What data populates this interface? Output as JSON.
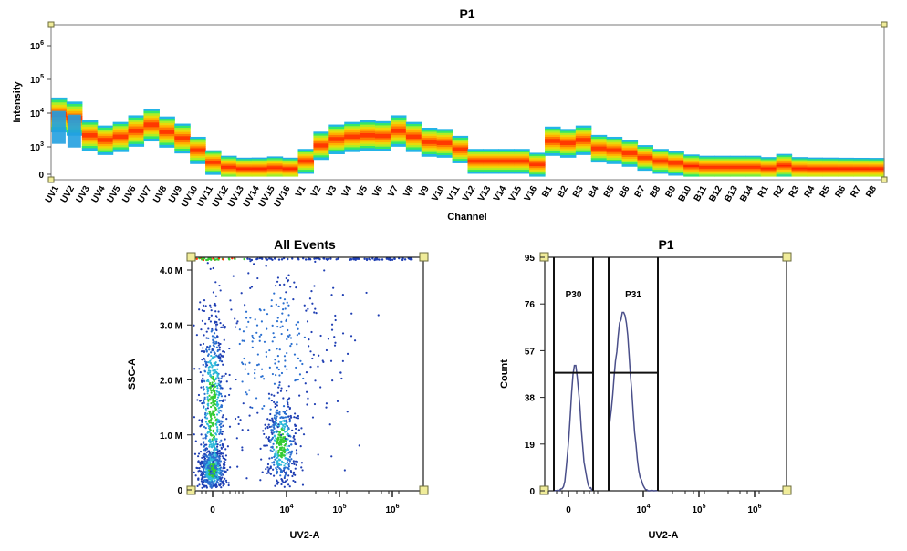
{
  "spectrum": {
    "title": "P1",
    "xlabel": "Channel",
    "ylabel": "Intensity",
    "y_ticks": [
      {
        "base": "0",
        "exp": ""
      },
      {
        "base": "10",
        "exp": "3"
      },
      {
        "base": "10",
        "exp": "4"
      },
      {
        "base": "10",
        "exp": "5"
      },
      {
        "base": "10",
        "exp": "6"
      }
    ]
  },
  "scatter_plot": {
    "title": "All Events",
    "xlabel": "UV2-A",
    "ylabel": "SSC-A",
    "x_ticks": [
      {
        "base": "0",
        "exp": ""
      },
      {
        "base": "10",
        "exp": "4"
      },
      {
        "base": "10",
        "exp": "5"
      },
      {
        "base": "10",
        "exp": "6"
      }
    ],
    "y_ticks": [
      "0",
      "1.0 M",
      "2.0 M",
      "3.0 M",
      "4.0 M"
    ]
  },
  "histogram_plot": {
    "title": "P1",
    "xlabel": "UV2-A",
    "ylabel": "Count",
    "x_ticks": [
      {
        "base": "0",
        "exp": ""
      },
      {
        "base": "10",
        "exp": "4"
      },
      {
        "base": "10",
        "exp": "5"
      },
      {
        "base": "10",
        "exp": "6"
      }
    ],
    "y_ticks": [
      "0",
      "19",
      "38",
      "57",
      "76",
      "95"
    ],
    "gates": [
      {
        "label": "P30"
      },
      {
        "label": "P31"
      }
    ]
  },
  "chart_data": [
    {
      "type": "heatmap",
      "title": "P1",
      "xlabel": "Channel",
      "ylabel": "Intensity",
      "y_scale": "log",
      "categories": [
        "UV1",
        "UV2",
        "UV3",
        "UV4",
        "UV5",
        "UV6",
        "UV7",
        "UV8",
        "UV9",
        "UV10",
        "UV11",
        "UV12",
        "UV13",
        "UV14",
        "UV15",
        "UV16",
        "V1",
        "V2",
        "V3",
        "V4",
        "V5",
        "V6",
        "V7",
        "V8",
        "V9",
        "V10",
        "V11",
        "V12",
        "V13",
        "V14",
        "V15",
        "V16",
        "B1",
        "B2",
        "B3",
        "B4",
        "B5",
        "B6",
        "B7",
        "B8",
        "B9",
        "B10",
        "B11",
        "B12",
        "B13",
        "B14",
        "R1",
        "R2",
        "R3",
        "R4",
        "R5",
        "R6",
        "R7",
        "R8"
      ],
      "median_intensity": [
        9000,
        7000,
        2200,
        1600,
        2000,
        3000,
        4500,
        2800,
        1800,
        800,
        350,
        250,
        200,
        220,
        240,
        200,
        380,
        1100,
        1700,
        2000,
        2200,
        2100,
        3000,
        2000,
        1400,
        1300,
        850,
        380,
        380,
        380,
        380,
        300,
        1500,
        1300,
        1600,
        900,
        800,
        650,
        480,
        380,
        330,
        270,
        250,
        250,
        250,
        250,
        230,
        280,
        230,
        220,
        210,
        190,
        180,
        170
      ],
      "color_scale": [
        "#1e6fdc",
        "#22b8e8",
        "#2ee86a",
        "#b8f020",
        "#ffd200",
        "#ff8000",
        "#ff1a00"
      ],
      "grid": false
    },
    {
      "type": "scatter",
      "title": "All Events",
      "xlabel": "UV2-A",
      "ylabel": "SSC-A",
      "x_scale": "biexponential",
      "ylim": [
        0,
        4200000
      ],
      "populations": [
        {
          "x_center": 0,
          "y_center": 350000,
          "points": 520
        },
        {
          "x_center": 0,
          "y_center": 1500000,
          "points": 600
        },
        {
          "x_center": 8000,
          "y_center": 850000,
          "points": 420
        },
        {
          "x_center": 5000,
          "y_center": 2500000,
          "points": 350
        }
      ],
      "grid": false
    },
    {
      "type": "histogram",
      "title": "P1",
      "xlabel": "UV2-A",
      "ylabel": "Count",
      "x_scale": "biexponential",
      "ylim": [
        0,
        95
      ],
      "peaks": [
        {
          "x": 0,
          "count": 51
        },
        {
          "x": 7000,
          "count": 73
        }
      ],
      "gates": [
        {
          "label": "P30",
          "level": 48
        },
        {
          "label": "P31",
          "level": 48
        }
      ],
      "line_color": "#4a4f8a",
      "grid": false
    }
  ]
}
